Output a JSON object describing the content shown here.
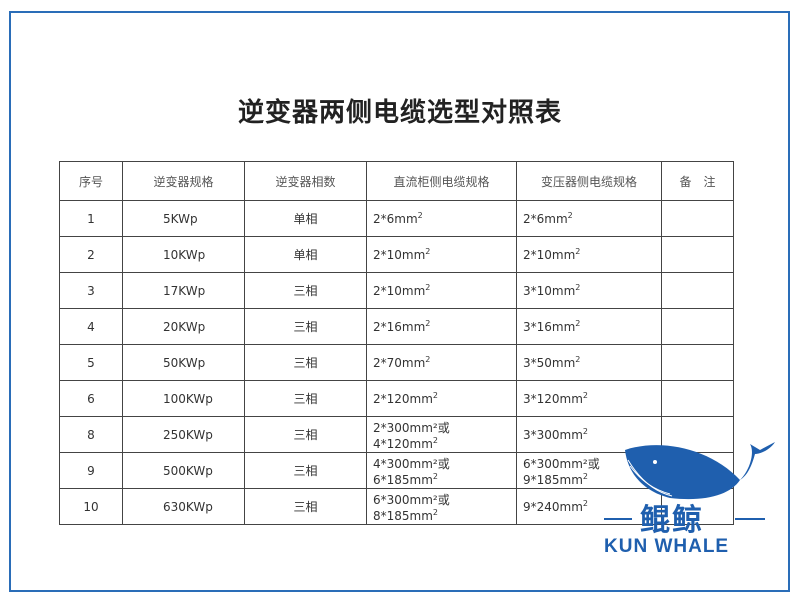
{
  "title": "逆变器两侧电缆选型对照表",
  "table": {
    "headers": [
      "序号",
      "逆变器规格",
      "逆变器相数",
      "直流柜侧电缆规格",
      "变压器侧电缆规格",
      "备　注"
    ],
    "rows": [
      [
        "1",
        "5KWp",
        "单相",
        "2*6mm",
        "2*6mm",
        ""
      ],
      [
        "2",
        "10KWp",
        "单相",
        "2*10mm",
        "2*10mm",
        ""
      ],
      [
        "3",
        "17KWp",
        "三相",
        "2*10mm",
        "3*10mm",
        ""
      ],
      [
        "4",
        "20KWp",
        "三相",
        "2*16mm",
        "3*16mm",
        ""
      ],
      [
        "5",
        "50KWp",
        "三相",
        "2*70mm",
        "3*50mm",
        ""
      ],
      [
        "6",
        "100KWp",
        "三相",
        "2*120mm",
        "3*120mm",
        ""
      ],
      [
        "8",
        "250KWp",
        "三相",
        "2*300mm²或4*120mm",
        "3*300mm",
        ""
      ],
      [
        "9",
        "500KWp",
        "三相",
        "4*300mm²或6*185mm",
        "6*300mm²或9*185mm",
        ""
      ],
      [
        "10",
        "630KWp",
        "三相",
        "6*300mm²或8*185mm",
        "9*240mm",
        ""
      ]
    ]
  },
  "logo": {
    "chinese": "鲲鲸",
    "english": "KUN WHALE",
    "color": "#1f5fae"
  }
}
